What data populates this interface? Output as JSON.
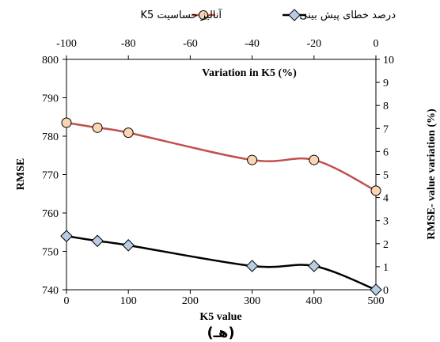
{
  "colors": {
    "series1_line": "#c0504d",
    "series1_marker": "#fbd4b4",
    "series2_line": "#000000",
    "series2_marker": "#b8cce4",
    "axis": "#000000"
  },
  "legend": {
    "series1": "آنالیز حساسیت  K5",
    "series2": "درصد خطای پیش بینی"
  },
  "caption": "(هـ)",
  "chart_data": {
    "type": "line",
    "xlabel": "K5 value",
    "ylabel": "RMSE",
    "x2label": "Variation in K5 (%)",
    "y2label": "RMSE- value variation (%)",
    "x": [
      0,
      50,
      100,
      300,
      400,
      500
    ],
    "xlim": [
      0,
      500
    ],
    "xticks": [
      0,
      100,
      200,
      300,
      400,
      500
    ],
    "ylim": [
      740,
      800
    ],
    "yticks": [
      740,
      750,
      760,
      770,
      780,
      790,
      800
    ],
    "x2lim": [
      -100,
      0
    ],
    "x2ticks": [
      -100,
      -80,
      -60,
      -40,
      -20,
      0
    ],
    "y2lim": [
      0,
      10
    ],
    "y2ticks": [
      0,
      1,
      2,
      3,
      4,
      5,
      6,
      7,
      8,
      9,
      10
    ],
    "grid": false,
    "legend_position": "top",
    "series": [
      {
        "name": "آنالیز حساسیت  K5",
        "axis": "left",
        "marker": "circle",
        "values": [
          783.5,
          782.2,
          780.9,
          773.8,
          773.8,
          765.8
        ]
      },
      {
        "name": "درصد خطای پیش بینی",
        "axis": "right",
        "marker": "diamond",
        "values": [
          2.33,
          2.12,
          1.93,
          1.03,
          1.03,
          0.0
        ]
      }
    ]
  }
}
